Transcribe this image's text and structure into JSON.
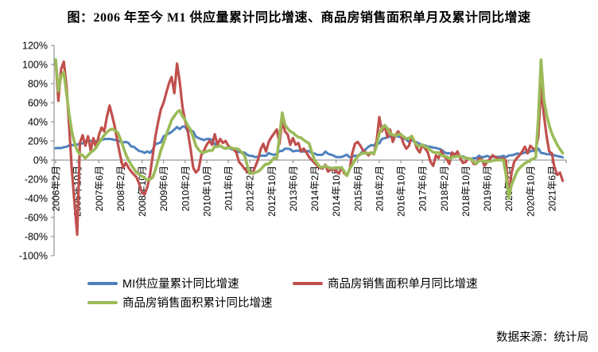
{
  "title": "图：2006 年至今 M1 供应量累计同比增速、商品房销售面积单月及累计同比增速",
  "source_note": "数据来源：统计局",
  "colors": {
    "m1": "#4F81BD",
    "monthly": "#C0504D",
    "cumulative": "#9BBB59",
    "axis": "#808080",
    "text": "#000000"
  },
  "legend": [
    {
      "label": "MI供应量累计同比增速",
      "series": "m1"
    },
    {
      "label": "商品房销售面积单月同比增速",
      "series": "monthly"
    },
    {
      "label": "商品房销售面积累计同比增速",
      "series": "cumulative"
    }
  ],
  "chart_data": {
    "type": "line",
    "title": "图：2006 年至今 M1 供应量累计同比增速、商品房销售面积单月及累计同比增速",
    "xlabel": "",
    "ylabel": "",
    "x_start": "2006-02",
    "x_end": "2021-10",
    "x_unit": "month",
    "ylim": [
      -100,
      120
    ],
    "y_ticks": [
      120,
      100,
      80,
      60,
      40,
      20,
      0,
      -20,
      -40,
      -60,
      -80,
      -100
    ],
    "y_tick_suffix": "%",
    "grid": false,
    "legend_position": "bottom",
    "x_tick_month_indices": [
      0,
      8,
      16,
      24,
      32,
      40,
      48,
      56,
      64,
      72,
      80,
      88,
      96,
      104,
      112,
      120,
      128,
      136,
      144,
      152,
      160,
      168,
      176,
      184
    ],
    "x_tick_labels": [
      "2006年2月",
      "2006年10月",
      "2007年6月",
      "2008年2月",
      "2008年10月",
      "2009年6月",
      "2010年2月",
      "2010年10月",
      "2011年6月",
      "2012年2月",
      "2012年10月",
      "2013年6月",
      "2014年2月",
      "2014年10月",
      "2015年6月",
      "2016年2月",
      "2016年10月",
      "2017年6月",
      "2018年2月",
      "2018年10月",
      "2019年6月",
      "2020年2月",
      "2020年10月",
      "2021年6月"
    ],
    "series": [
      {
        "name": "MI供应量累计同比增速",
        "color": "#4F81BD",
        "values": [
          12.4,
          12.7,
          12.5,
          13.5,
          13.9,
          15.3,
          15.6,
          15.7,
          16.3,
          16.8,
          17.5,
          19.5,
          21,
          19.8,
          20.4,
          19.3,
          20.9,
          20.9,
          22,
          22.1,
          22.2,
          21.7,
          21,
          20.7,
          19.2,
          18.3,
          19.1,
          17.9,
          14.2,
          14,
          11.5,
          9.4,
          8.9,
          7.5,
          9.1,
          7.5,
          10.9,
          17,
          17.5,
          18.7,
          24.8,
          26.4,
          27.7,
          29.5,
          32,
          34.6,
          32.4,
          35,
          35,
          29.9,
          31.2,
          29.9,
          24.6,
          22.9,
          21.9,
          20.9,
          22.1,
          22.1,
          21.2,
          16.6,
          14.5,
          15,
          12.9,
          12.7,
          13.1,
          11.6,
          11.2,
          8.9,
          8.4,
          7.8,
          7.9,
          5.5,
          4.3,
          4.4,
          3.1,
          3.5,
          4.7,
          4.6,
          4.5,
          7.3,
          6.1,
          5.5,
          6.5,
          9.5,
          9.5,
          11.9,
          11.9,
          11.3,
          9.1,
          9.7,
          9.9,
          8.9,
          8.9,
          9.4,
          9.3,
          7,
          6.9,
          5.4,
          5.5,
          5.7,
          8.9,
          6.7,
          5.7,
          4.8,
          3.2,
          3.2,
          3.2,
          4.5,
          5.6,
          2.9,
          3.7,
          4.7,
          4.3,
          6.6,
          9.3,
          11.4,
          14,
          15.7,
          15.2,
          18.6,
          17.4,
          22.1,
          22.9,
          23.7,
          24.6,
          25.4,
          25.3,
          24.7,
          23.9,
          22.7,
          21.4,
          19,
          21.4,
          18.8,
          18.5,
          17,
          15,
          15.3,
          14,
          14,
          13,
          12.7,
          11.8,
          11,
          8.5,
          7.1,
          7.2,
          6,
          6.6,
          5.1,
          3.9,
          4,
          2.7,
          1.5,
          1.5,
          2,
          2,
          4.6,
          2.9,
          3.4,
          4.4,
          3.1,
          3.4,
          3.4,
          3.3,
          3.5,
          4.4,
          3,
          4.8,
          5,
          5.5,
          6.8,
          6.5,
          6.9,
          8,
          8.1,
          9.1,
          10,
          8.6,
          12,
          7.4,
          7.1,
          6.2,
          6.1,
          5.5,
          4.9,
          4.2,
          3.7,
          2.8
        ]
      },
      {
        "name": "商品房销售面积单月同比增速",
        "color": "#C0504D",
        "values": [
          104,
          62,
          95,
          103,
          78,
          35,
          -10,
          -45,
          -78,
          18,
          26,
          15,
          25,
          10,
          23,
          13,
          26,
          34,
          30,
          45,
          57,
          46,
          34,
          18,
          4,
          -8,
          -3,
          -8,
          -12,
          -15,
          -18,
          -25,
          -34,
          -36,
          -28,
          -15,
          5,
          25,
          40,
          53,
          60,
          70,
          80,
          87,
          70,
          101,
          82,
          56,
          41,
          30,
          12,
          -8,
          -13,
          -10,
          5,
          10,
          16,
          20,
          16,
          27,
          16,
          22,
          18,
          20,
          15,
          13,
          11,
          8,
          -2,
          -5,
          -9,
          -12,
          -14,
          -13,
          -7,
          0,
          11,
          17,
          9,
          19,
          24,
          28,
          32,
          17,
          42,
          30,
          27,
          16,
          23,
          16,
          18,
          9,
          12,
          8,
          3,
          0,
          -3,
          -6,
          -8,
          -9,
          -5,
          -12,
          -10,
          -9,
          -12,
          -14,
          -8,
          -14,
          -16,
          -10,
          7,
          17,
          19,
          15,
          10,
          8,
          5,
          8,
          6,
          20,
          45,
          30,
          36,
          24,
          32,
          19,
          26,
          30,
          26,
          17,
          12,
          15,
          25,
          20,
          12,
          8,
          16,
          12,
          8,
          -2,
          -6,
          5,
          2,
          10,
          4,
          1,
          -4,
          8,
          5,
          9,
          2,
          -3,
          -2,
          2,
          1,
          -4,
          -4,
          2,
          1,
          -6,
          -2,
          1,
          5,
          3,
          2,
          1,
          2,
          -1,
          -39.9,
          -14,
          -2,
          2,
          5,
          9,
          14,
          7,
          15,
          12,
          11,
          25,
          77,
          48,
          26,
          9,
          7,
          -8.5,
          -15.5,
          -13.2,
          -21.7
        ]
      },
      {
        "name": "商品房销售面积累计同比增速",
        "color": "#9BBB59",
        "values": [
          105,
          72,
          88,
          92,
          70,
          48,
          30,
          18,
          10,
          6,
          5,
          2,
          5,
          8,
          10,
          13,
          18,
          22,
          26,
          29,
          31.5,
          32.6,
          31,
          29,
          22,
          14,
          6,
          0,
          -5,
          -9,
          -13,
          -15,
          -17,
          -19,
          -21,
          -20,
          -18,
          -10,
          0,
          10,
          18,
          26,
          34,
          42,
          46,
          50,
          52,
          46,
          42,
          36,
          32,
          24,
          15,
          11,
          8,
          8,
          9,
          10,
          10,
          14,
          14,
          15,
          13,
          12,
          13,
          13,
          12,
          12,
          11,
          8,
          5,
          -5,
          -14,
          -13.6,
          -13,
          -12,
          -10,
          -6.6,
          -4.1,
          -4,
          -1.1,
          2.4,
          1.8,
          25,
          49.5,
          37.1,
          33,
          30,
          28.7,
          26,
          24,
          23.3,
          21,
          19,
          17.3,
          8,
          -0.1,
          -3.8,
          -6.9,
          -7.8,
          -6,
          -7.6,
          -8.3,
          -8.6,
          -7.8,
          -8.2,
          -7.6,
          -12,
          -16.3,
          -9.2,
          -4.8,
          -0.2,
          3.9,
          6.1,
          7.2,
          7.5,
          7.2,
          7.4,
          6.5,
          15,
          28.2,
          33.1,
          36.5,
          33.2,
          27.9,
          26.4,
          25.5,
          26.9,
          26.8,
          24.3,
          22.5,
          23,
          25.1,
          19.5,
          15.7,
          14.3,
          16.1,
          14,
          12.7,
          10.3,
          8.2,
          7.9,
          7.7,
          5,
          4.1,
          3.6,
          1.3,
          2.9,
          3.3,
          4.2,
          4,
          2.9,
          2.2,
          1.4,
          1.3,
          -2,
          -3.6,
          -0.9,
          -0.3,
          -1.6,
          -1.8,
          -1.3,
          -0.6,
          -0.1,
          0.1,
          0.2,
          -0.1,
          -15,
          -39.9,
          -26.3,
          -19.3,
          -12.3,
          -8.4,
          -5.8,
          -3.3,
          -1.8,
          0,
          1.3,
          2.6,
          45,
          104.9,
          63.8,
          48.1,
          36.3,
          27.7,
          21.5,
          15.9,
          11.3,
          7.3
        ]
      }
    ]
  }
}
